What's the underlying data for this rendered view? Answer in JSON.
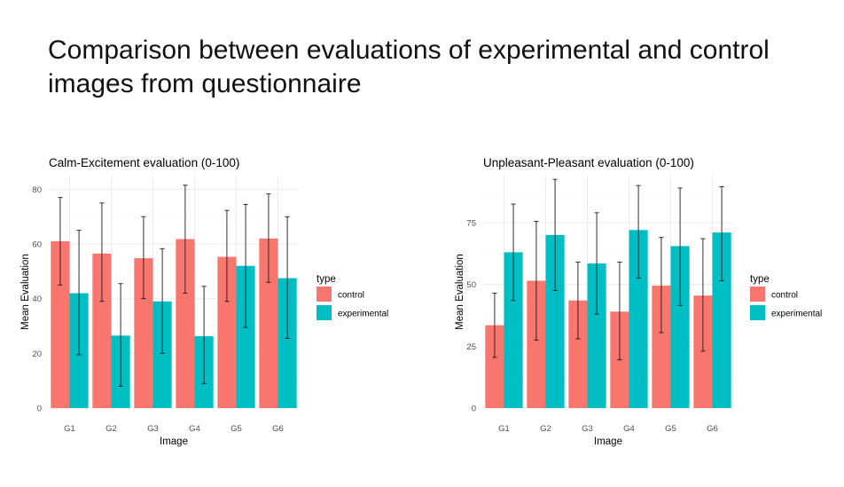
{
  "slide": {
    "title_line1": "Comparison between evaluations of experimental and control",
    "title_line2": "images from questionnaire"
  },
  "colors": {
    "control": "#F8766D",
    "experimental": "#00BFC4"
  },
  "chart_data": [
    {
      "type": "bar",
      "title": "Calm-Excitement evaluation (0-100)",
      "xlabel": "Image",
      "ylabel": "Mean Evaluation",
      "categories": [
        "G1",
        "G2",
        "G3",
        "G4",
        "G5",
        "G6"
      ],
      "ylim": [
        0,
        85
      ],
      "yticks": [
        0,
        20,
        40,
        60,
        80
      ],
      "grid": true,
      "legend": {
        "title": "type",
        "position": "right",
        "entries": [
          "control",
          "experimental"
        ]
      },
      "series": [
        {
          "name": "control",
          "values": [
            61,
            56.5,
            54.8,
            61.8,
            55.3,
            62
          ],
          "err_low": [
            45,
            39,
            40,
            42,
            39,
            46
          ],
          "err_high": [
            77,
            75,
            70,
            81.5,
            72.3,
            78.3
          ]
        },
        {
          "name": "experimental",
          "values": [
            42,
            26.5,
            39,
            26.3,
            52,
            47.5
          ],
          "err_low": [
            19.5,
            8,
            20,
            9,
            29.5,
            25.5
          ],
          "err_high": [
            65,
            45.5,
            58.3,
            44.5,
            74.5,
            70
          ]
        }
      ]
    },
    {
      "type": "bar",
      "title": "Unpleasant-Pleasant evaluation (0-100)",
      "xlabel": "Image",
      "ylabel": "Mean Evaluation",
      "categories": [
        "G1",
        "G2",
        "G3",
        "G4",
        "G5",
        "G6"
      ],
      "ylim": [
        0,
        94
      ],
      "yticks": [
        0,
        25,
        50,
        75
      ],
      "grid": true,
      "legend": {
        "title": "type",
        "position": "right",
        "entries": [
          "control",
          "experimental"
        ]
      },
      "series": [
        {
          "name": "control",
          "values": [
            33.5,
            51.5,
            43.5,
            39,
            49.5,
            45.5
          ],
          "err_low": [
            20.5,
            27.5,
            28,
            19.5,
            30.5,
            23
          ],
          "err_high": [
            46.5,
            75.5,
            59,
            59,
            69,
            68.5
          ]
        },
        {
          "name": "experimental",
          "values": [
            63,
            70,
            58.5,
            72,
            65.5,
            71
          ],
          "err_low": [
            43.5,
            47.5,
            38,
            52.5,
            41.5,
            51.5
          ],
          "err_high": [
            82.5,
            92.5,
            79,
            90,
            89,
            89.5
          ]
        }
      ]
    }
  ]
}
